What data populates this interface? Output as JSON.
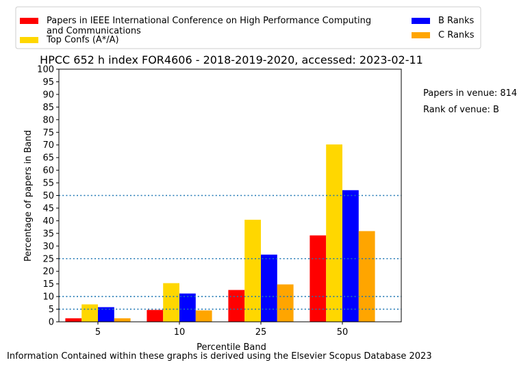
{
  "chart_data": {
    "type": "bar",
    "title": "HPCC 652 h index FOR4606 - 2018-2019-2020, accessed: 2023-02-11",
    "xlabel": "Percentile Band",
    "ylabel": "Percentage of papers in Band",
    "categories": [
      "5",
      "10",
      "25",
      "50"
    ],
    "ylim": [
      0,
      100
    ],
    "yticks": [
      0,
      5,
      10,
      15,
      20,
      25,
      30,
      35,
      40,
      45,
      50,
      55,
      60,
      65,
      70,
      75,
      80,
      85,
      90,
      95,
      100
    ],
    "series": [
      {
        "name": "Papers in IEEE International Conference on High Performance Computing and Communications",
        "color": "#ff0000",
        "values": [
          1.4,
          4.7,
          12.6,
          34.2
        ]
      },
      {
        "name": "Top Confs (A*/A)",
        "color": "#ffd700",
        "values": [
          6.9,
          15.3,
          40.4,
          70.2
        ]
      },
      {
        "name": "B Ranks",
        "color": "#0000ff",
        "values": [
          5.8,
          11.2,
          26.6,
          52.1
        ]
      },
      {
        "name": "C Ranks",
        "color": "#ffa500",
        "values": [
          1.4,
          4.5,
          14.8,
          35.9
        ]
      }
    ],
    "reference_lines": [
      5,
      10,
      25,
      50
    ],
    "reference_line_color": "#1f77b4",
    "legend_position": "top"
  },
  "legend": {
    "left_items": [
      {
        "label_lines": [
          "Papers in IEEE International Conference on High Performance Computing",
          "and Communications"
        ],
        "color": "#ff0000"
      },
      {
        "label_lines": [
          "Top Confs (A*/A)"
        ],
        "color": "#ffd700"
      }
    ],
    "right_items": [
      {
        "label_lines": [
          "B Ranks"
        ],
        "color": "#0000ff"
      },
      {
        "label_lines": [
          "C Ranks"
        ],
        "color": "#ffa500"
      }
    ]
  },
  "side_info": {
    "papers_in_venue": "Papers in venue: 814",
    "rank_of_venue": "Rank of venue: B"
  },
  "footer": "Information Contained within these graphs is derived using the Elsevier Scopus Database 2023"
}
